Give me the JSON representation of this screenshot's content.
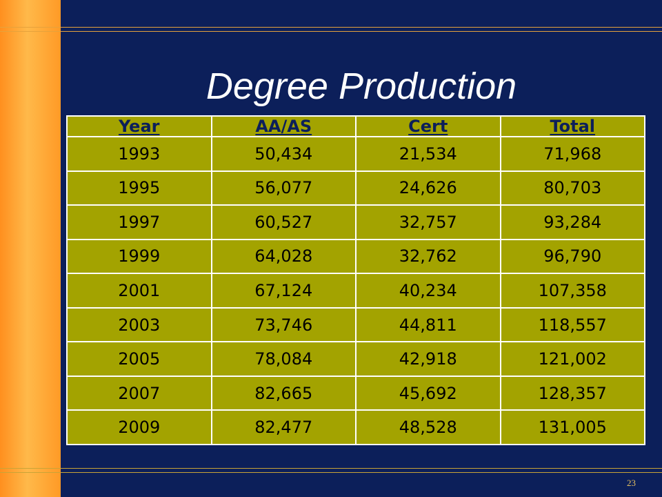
{
  "slide": {
    "title": "Degree Production",
    "page_number": "23"
  },
  "table": {
    "headers": [
      "Year",
      "AA/AS",
      "Cert",
      "Total"
    ],
    "rows": [
      [
        "1993",
        "50,434",
        "21,534",
        "71,968"
      ],
      [
        "1995",
        "56,077",
        "24,626",
        "80,703"
      ],
      [
        "1997",
        "60,527",
        "32,757",
        "93,284"
      ],
      [
        "1999",
        "64,028",
        "32,762",
        "96,790"
      ],
      [
        "2001",
        "67,124",
        "40,234",
        "107,358"
      ],
      [
        "2003",
        "73,746",
        "44,811",
        "118,557"
      ],
      [
        "2005",
        "78,084",
        "42,918",
        "121,002"
      ],
      [
        "2007",
        "82,665",
        "45,692",
        "128,357"
      ],
      [
        "2009",
        "82,477",
        "48,528",
        "131,005"
      ]
    ]
  },
  "colors": {
    "background": "#0c1f5a",
    "accent_bar": "#ff9a26",
    "table_fill": "#a3a300",
    "header_text": "#0c1f5a"
  }
}
